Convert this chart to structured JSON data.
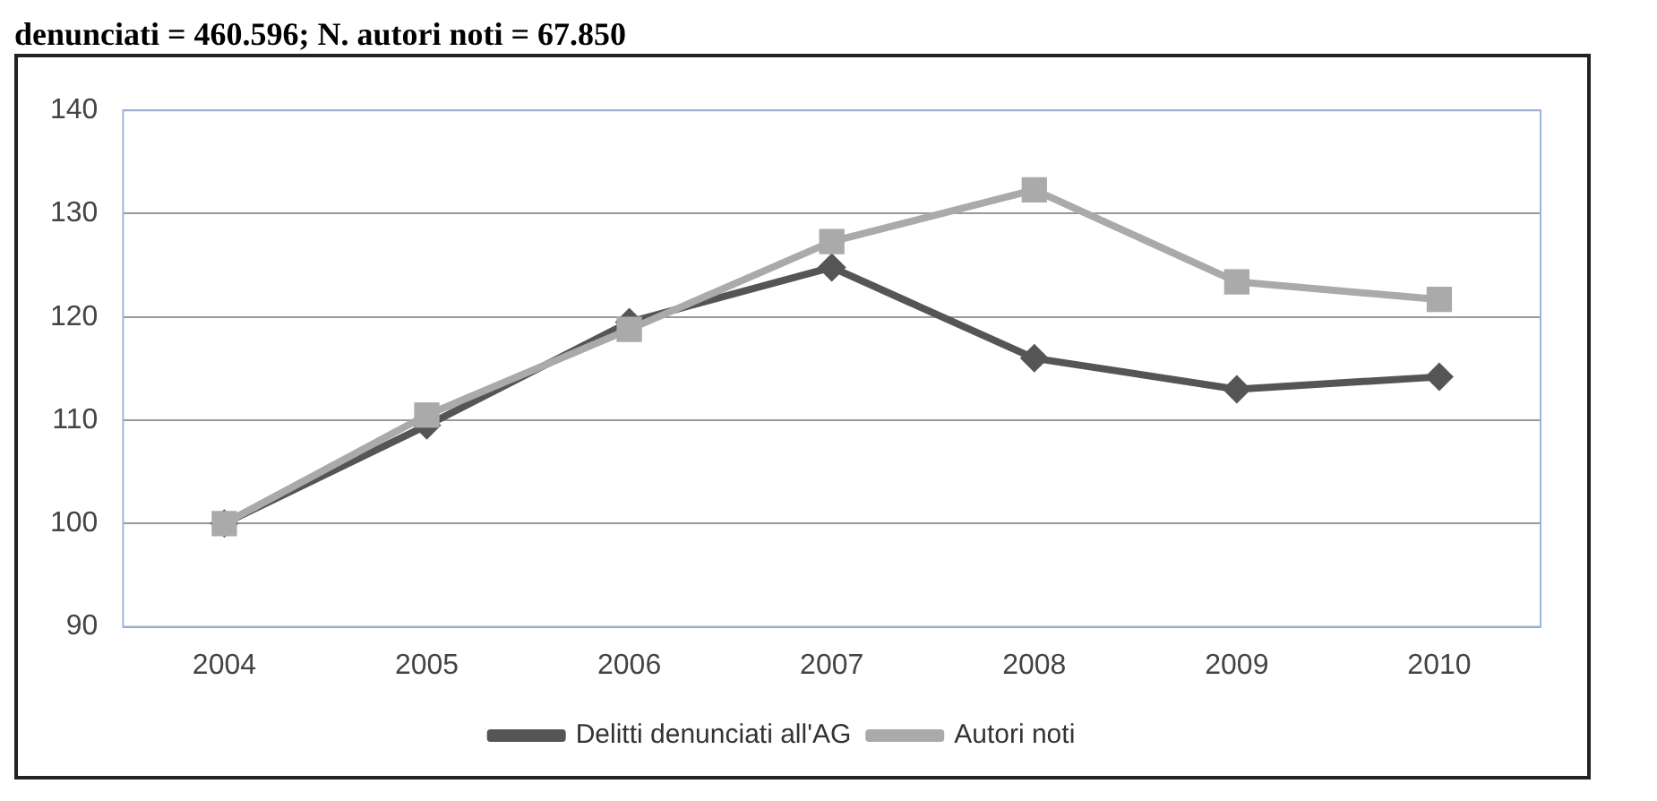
{
  "chart_data": {
    "type": "line",
    "title": "denunciati = 460.596; N. autori noti = 67.850",
    "categories": [
      "2004",
      "2005",
      "2006",
      "2007",
      "2008",
      "2009",
      "2010"
    ],
    "series": [
      {
        "name": "Delitti denunciati all'AG",
        "color": "#555555",
        "marker": "diamond",
        "values": [
          100,
          109.5,
          119.5,
          124.8,
          116,
          113,
          114.2
        ]
      },
      {
        "name": "Autori noti",
        "color": "#aaaaaa",
        "marker": "square",
        "values": [
          100,
          110.5,
          118.8,
          127.3,
          132.3,
          123.4,
          121.7
        ]
      }
    ],
    "ylim": [
      90,
      140
    ],
    "yticks": [
      90,
      100,
      110,
      120,
      130,
      140
    ],
    "grid": "y",
    "legend": "bottom"
  }
}
